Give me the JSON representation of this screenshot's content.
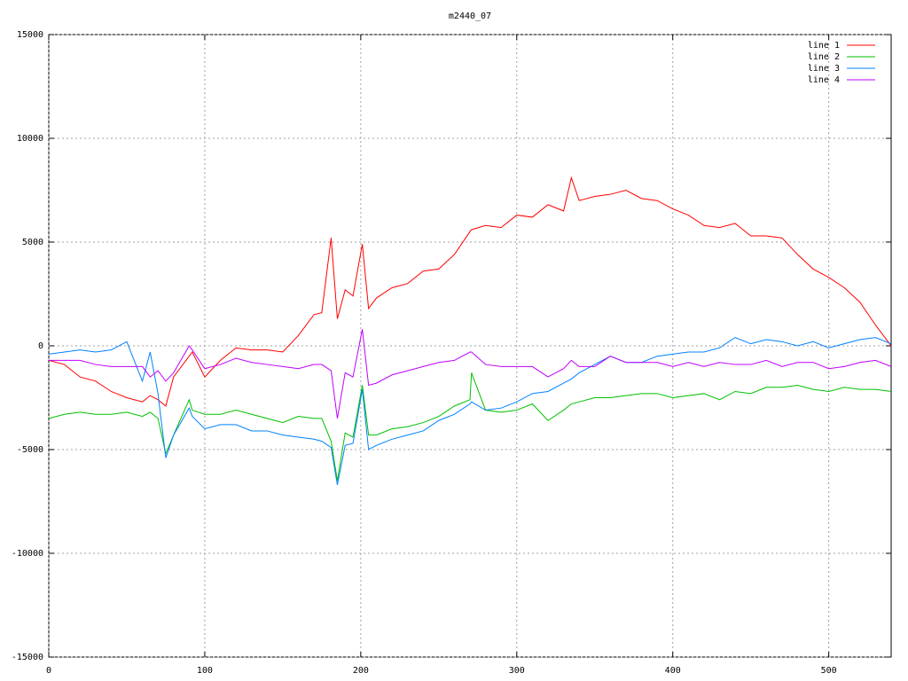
{
  "chart_data": {
    "type": "line",
    "title": "m2440_07",
    "x": [
      0,
      10,
      20,
      30,
      40,
      50,
      60,
      65,
      70,
      75,
      80,
      90,
      92,
      100,
      110,
      120,
      130,
      140,
      150,
      160,
      170,
      175,
      181,
      185,
      190,
      195,
      201,
      205,
      210,
      220,
      230,
      240,
      250,
      260,
      270,
      271,
      280,
      290,
      300,
      310,
      320,
      330,
      335,
      340,
      350,
      360,
      370,
      380,
      390,
      400,
      410,
      420,
      430,
      440,
      450,
      460,
      470,
      480,
      490,
      500,
      510,
      520,
      530,
      540
    ],
    "series": [
      {
        "name": "line 1",
        "color": "#ff0000",
        "values": [
          -700,
          -900,
          -1500,
          -1700,
          -2200,
          -2500,
          -2700,
          -2400,
          -2600,
          -2900,
          -1500,
          -500,
          -300,
          -1500,
          -700,
          -100,
          -200,
          -200,
          -300,
          500,
          1500,
          1600,
          5200,
          1300,
          2700,
          2400,
          4900,
          1800,
          2300,
          2800,
          3000,
          3600,
          3700,
          4400,
          5500,
          5600,
          5800,
          5700,
          6300,
          6200,
          6800,
          6500,
          8100,
          7000,
          7200,
          7300,
          7500,
          7100,
          7000,
          6600,
          6300,
          5800,
          5700,
          5900,
          5300,
          5300,
          5200,
          4400,
          3700,
          3300,
          2800,
          2100,
          1000,
          0
        ]
      },
      {
        "name": "line 2",
        "color": "#00c000",
        "values": [
          -3500,
          -3300,
          -3200,
          -3300,
          -3300,
          -3200,
          -3400,
          -3200,
          -3500,
          -5200,
          -4300,
          -2600,
          -3100,
          -3300,
          -3300,
          -3100,
          -3300,
          -3500,
          -3700,
          -3400,
          -3500,
          -3500,
          -4600,
          -6500,
          -4200,
          -4400,
          -1900,
          -4300,
          -4300,
          -4000,
          -3900,
          -3700,
          -3400,
          -2900,
          -2600,
          -1300,
          -3100,
          -3200,
          -3100,
          -2800,
          -3600,
          -3100,
          -2800,
          -2700,
          -2500,
          -2500,
          -2400,
          -2300,
          -2300,
          -2500,
          -2400,
          -2300,
          -2600,
          -2200,
          -2300,
          -2000,
          -2000,
          -1900,
          -2100,
          -2200,
          -2000,
          -2100,
          -2100,
          -2200
        ]
      },
      {
        "name": "line 3",
        "color": "#0080ff",
        "values": [
          -400,
          -300,
          -200,
          -300,
          -200,
          200,
          -1700,
          -300,
          -2300,
          -5400,
          -4300,
          -3000,
          -3400,
          -4000,
          -3800,
          -3800,
          -4100,
          -4100,
          -4300,
          -4400,
          -4500,
          -4600,
          -4900,
          -6700,
          -4800,
          -4700,
          -2100,
          -5000,
          -4800,
          -4500,
          -4300,
          -4100,
          -3600,
          -3300,
          -2800,
          -2700,
          -3100,
          -3000,
          -2700,
          -2300,
          -2200,
          -1800,
          -1600,
          -1300,
          -900,
          -500,
          -800,
          -800,
          -500,
          -400,
          -300,
          -300,
          -100,
          400,
          100,
          300,
          200,
          0,
          200,
          -100,
          100,
          300,
          400,
          100
        ]
      },
      {
        "name": "line 4",
        "color": "#c000ff",
        "values": [
          -700,
          -700,
          -700,
          -900,
          -1000,
          -1000,
          -1000,
          -1500,
          -1200,
          -1700,
          -1300,
          0,
          -200,
          -1100,
          -900,
          -600,
          -800,
          -900,
          -1000,
          -1100,
          -900,
          -900,
          -1200,
          -3500,
          -1300,
          -1500,
          800,
          -1900,
          -1800,
          -1400,
          -1200,
          -1000,
          -800,
          -700,
          -300,
          -300,
          -900,
          -1000,
          -1000,
          -1000,
          -1500,
          -1100,
          -700,
          -1000,
          -1000,
          -500,
          -800,
          -800,
          -800,
          -1000,
          -800,
          -1000,
          -800,
          -900,
          -900,
          -700,
          -1000,
          -800,
          -800,
          -1100,
          -1000,
          -800,
          -700,
          -1000
        ]
      }
    ],
    "xlim": [
      0,
      540
    ],
    "ylim": [
      -15000,
      15000
    ],
    "xticks": [
      0,
      100,
      200,
      300,
      400,
      500
    ],
    "yticks": [
      -15000,
      -10000,
      -5000,
      0,
      5000,
      10000,
      15000
    ],
    "grid": true,
    "legend": "top-right"
  }
}
